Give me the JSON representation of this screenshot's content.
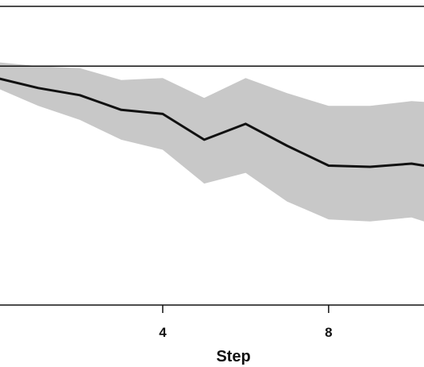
{
  "chart_data": {
    "type": "line",
    "title": "",
    "xlabel": "Step",
    "ylabel": "",
    "xlim": [
      0.0,
      10.3
    ],
    "ylim": [
      -0.6,
      0.15
    ],
    "grid": false,
    "x_ticks": [
      {
        "value": 4,
        "label": "4"
      },
      {
        "value": 8,
        "label": "8"
      }
    ],
    "reference_line": 0.0,
    "series": [
      {
        "name": "",
        "x": [
          0,
          1,
          2,
          3,
          4,
          5,
          6,
          7,
          8,
          9,
          10,
          10.3
        ],
        "y": [
          -0.03,
          -0.055,
          -0.073,
          -0.11,
          -0.12,
          -0.185,
          -0.145,
          -0.2,
          -0.25,
          -0.253,
          -0.245,
          -0.25
        ],
        "band_upper": [
          0.01,
          0.0,
          -0.005,
          -0.035,
          -0.03,
          -0.08,
          -0.03,
          -0.068,
          -0.1,
          -0.1,
          -0.088,
          -0.09
        ],
        "band_lower": [
          -0.055,
          -0.1,
          -0.135,
          -0.185,
          -0.21,
          -0.295,
          -0.268,
          -0.34,
          -0.385,
          -0.39,
          -0.38,
          -0.39
        ]
      }
    ],
    "colors": {
      "band": "#c8c8c8",
      "line": "#111111",
      "axis": "#111111"
    }
  }
}
